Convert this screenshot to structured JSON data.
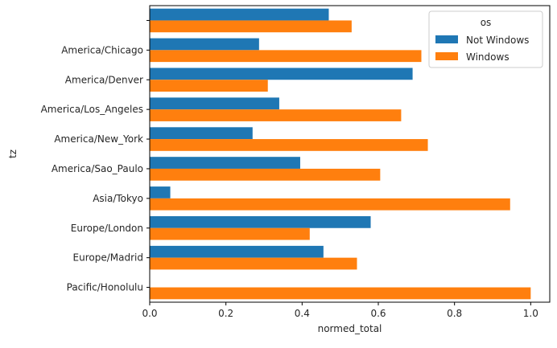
{
  "chart_data": {
    "type": "bar",
    "orientation": "horizontal",
    "categories": [
      "",
      "America/Chicago",
      "America/Denver",
      "America/Los_Angeles",
      "America/New_York",
      "America/Sao_Paulo",
      "Asia/Tokyo",
      "Europe/London",
      "Europe/Madrid",
      "Pacific/Honolulu"
    ],
    "series": [
      {
        "name": "Not Windows",
        "color": "#1f77b4",
        "values": [
          0.47,
          0.287,
          0.69,
          0.34,
          0.27,
          0.395,
          0.054,
          0.58,
          0.456,
          0.0
        ]
      },
      {
        "name": "Windows",
        "color": "#ff7f0e",
        "values": [
          0.53,
          0.713,
          0.31,
          0.66,
          0.73,
          0.605,
          0.946,
          0.42,
          0.544,
          1.0
        ]
      }
    ],
    "xlabel": "normed_total",
    "ylabel": "tz",
    "xlim": [
      0,
      1.05
    ],
    "xticks": [
      "0.0",
      "0.2",
      "0.4",
      "0.6",
      "0.8",
      "1.0"
    ],
    "legend": {
      "title": "os",
      "position": "top-right"
    },
    "grid": false
  }
}
